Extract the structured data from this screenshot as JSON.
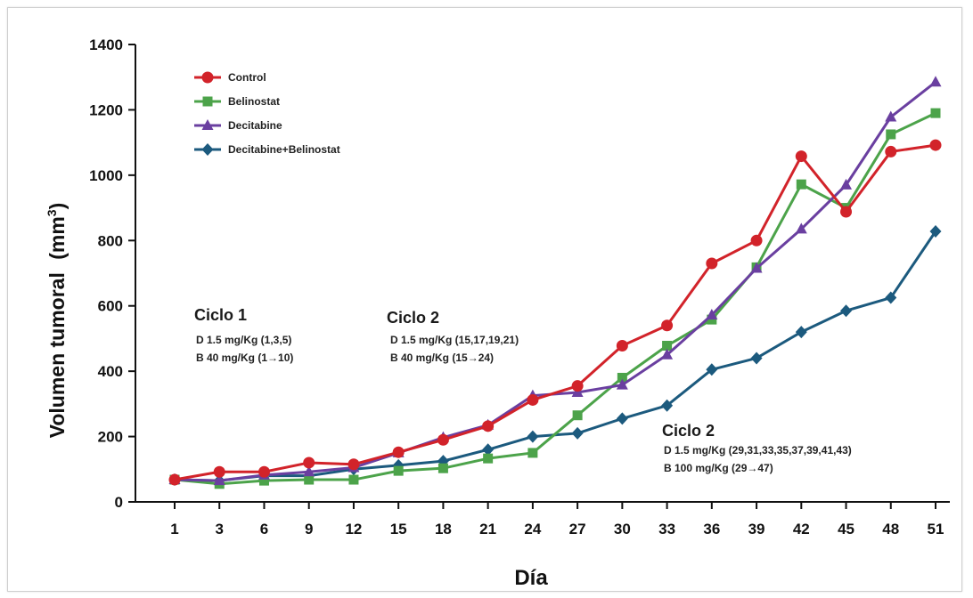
{
  "chart_data": {
    "type": "line",
    "title": "",
    "xlabel": "Día",
    "ylabel": "Volumen tumoral",
    "ylabel_unit_base": "(mm",
    "ylabel_unit_exp": "3",
    "ylabel_unit_close": ")",
    "ylim": [
      0,
      1400
    ],
    "yticks": [
      0,
      200,
      400,
      600,
      800,
      1000,
      1200,
      1400
    ],
    "x": [
      1,
      3,
      6,
      9,
      12,
      15,
      18,
      21,
      24,
      27,
      30,
      33,
      36,
      39,
      42,
      45,
      48,
      51
    ],
    "x_labels": [
      "1",
      "3",
      "6",
      "9",
      "12",
      "15",
      "18",
      "21",
      "24",
      "27",
      "30",
      "33",
      "36",
      "39",
      "42",
      "45",
      "48",
      "51"
    ],
    "legend_position": "top-left",
    "grid": false,
    "series": [
      {
        "name": "Control",
        "color": "#d2232a",
        "marker": "circle",
        "values": [
          68,
          92,
          92,
          120,
          115,
          152,
          190,
          232,
          312,
          355,
          478,
          540,
          730,
          800,
          1058,
          888,
          1072,
          1092
        ]
      },
      {
        "name": "Belinostat",
        "color": "#4ca34a",
        "marker": "square",
        "values": [
          68,
          55,
          65,
          68,
          68,
          95,
          103,
          133,
          150,
          265,
          380,
          478,
          558,
          718,
          972,
          900,
          1125,
          1190
        ]
      },
      {
        "name": "Decitabine",
        "color": "#6a3fa0",
        "marker": "triangle",
        "values": [
          68,
          65,
          82,
          92,
          105,
          150,
          197,
          235,
          325,
          335,
          358,
          450,
          572,
          715,
          835,
          970,
          1178,
          1285
        ]
      },
      {
        "name": "Decitabine+Belinostat",
        "color": "#1c5a7e",
        "marker": "diamond",
        "values": [
          68,
          65,
          80,
          80,
          100,
          112,
          125,
          160,
          200,
          210,
          255,
          295,
          405,
          440,
          520,
          585,
          625,
          828
        ]
      }
    ],
    "annotations": [
      {
        "title": "Ciclo 1",
        "lines": [
          "D 1.5 mg/Kg (1,3,5)",
          "B 40 mg/Kg (1→10)"
        ]
      },
      {
        "title": "Ciclo 2",
        "lines": [
          "D 1.5 mg/Kg (15,17,19,21)",
          "B 40 mg/Kg (15→24)"
        ]
      },
      {
        "title": "Ciclo 2",
        "lines": [
          "D 1.5 mg/Kg (29,31,33,35,37,39,41,43)",
          "B 100 mg/Kg (29→47)"
        ]
      }
    ]
  }
}
